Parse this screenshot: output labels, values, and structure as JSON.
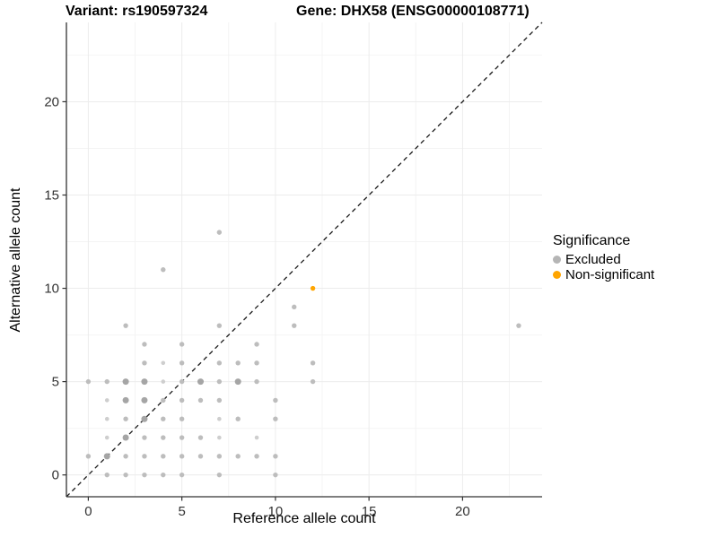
{
  "titles": {
    "variant": "Variant: rs190597324",
    "gene": "Gene: DHX58 (ENSG00000108771)"
  },
  "legend": {
    "title": "Significance",
    "items": [
      {
        "label": "Excluded",
        "color": "#b5b5b5"
      },
      {
        "label": "Non-significant",
        "color": "#FFA500"
      }
    ]
  },
  "chart_data": {
    "type": "scatter",
    "title": "",
    "xlabel": "Reference allele count",
    "ylabel": "Alternative allele count",
    "xlim": [
      -1.17,
      24.25
    ],
    "ylim": [
      -1.17,
      24.25
    ],
    "x_ticks": [
      0,
      5,
      10,
      15,
      20
    ],
    "y_ticks": [
      0,
      5,
      10,
      15,
      20
    ],
    "grid_major": [
      0,
      5,
      10,
      15,
      20
    ],
    "grid_minor": [
      2.5,
      7.5,
      12.5,
      17.5,
      22.5
    ],
    "grid_on": true,
    "legend_position": "right",
    "identity_line": {
      "style": "dashed",
      "equation": "y = x",
      "color": "#1a1a1a"
    },
    "series": [
      {
        "name": "Excluded",
        "color": "#bdbdbd",
        "color_light": "#cecece",
        "color_dark": "#a5a5a5",
        "points": [
          [
            1,
            0,
            1
          ],
          [
            2,
            0,
            1
          ],
          [
            3,
            0,
            1
          ],
          [
            4,
            0,
            1
          ],
          [
            5,
            0,
            1
          ],
          [
            7,
            0,
            1
          ],
          [
            10,
            0,
            1
          ],
          [
            0,
            1,
            1
          ],
          [
            1,
            1,
            2
          ],
          [
            2,
            1,
            1
          ],
          [
            3,
            1,
            1
          ],
          [
            4,
            1,
            1
          ],
          [
            5,
            1,
            1
          ],
          [
            6,
            1,
            1
          ],
          [
            7,
            1,
            1
          ],
          [
            8,
            1,
            1
          ],
          [
            9,
            1,
            1
          ],
          [
            10,
            1,
            1
          ],
          [
            1,
            2,
            0
          ],
          [
            2,
            2,
            2
          ],
          [
            3,
            2,
            1
          ],
          [
            4,
            2,
            1
          ],
          [
            5,
            2,
            1
          ],
          [
            6,
            2,
            1
          ],
          [
            7,
            2,
            0
          ],
          [
            9,
            2,
            0
          ],
          [
            1,
            3,
            0
          ],
          [
            2,
            3,
            1
          ],
          [
            3,
            3,
            2
          ],
          [
            4,
            3,
            1
          ],
          [
            5,
            3,
            1
          ],
          [
            7,
            3,
            0
          ],
          [
            8,
            3,
            1
          ],
          [
            10,
            3,
            1
          ],
          [
            1,
            4,
            0
          ],
          [
            2,
            4,
            2
          ],
          [
            3,
            4,
            2
          ],
          [
            4,
            4,
            1
          ],
          [
            5,
            4,
            1
          ],
          [
            6,
            4,
            1
          ],
          [
            7,
            4,
            1
          ],
          [
            10,
            4,
            1
          ],
          [
            0,
            5,
            1
          ],
          [
            1,
            5,
            1
          ],
          [
            2,
            5,
            2
          ],
          [
            3,
            5,
            2
          ],
          [
            4,
            5,
            0
          ],
          [
            5,
            5,
            1
          ],
          [
            6,
            5,
            2
          ],
          [
            7,
            5,
            1
          ],
          [
            8,
            5,
            2
          ],
          [
            9,
            5,
            1
          ],
          [
            12,
            5,
            1
          ],
          [
            3,
            6,
            1
          ],
          [
            4,
            6,
            0
          ],
          [
            5,
            6,
            1
          ],
          [
            7,
            6,
            1
          ],
          [
            8,
            6,
            1
          ],
          [
            9,
            6,
            1
          ],
          [
            12,
            6,
            1
          ],
          [
            3,
            7,
            1
          ],
          [
            5,
            7,
            1
          ],
          [
            9,
            7,
            1
          ],
          [
            2,
            8,
            1
          ],
          [
            7,
            8,
            1
          ],
          [
            11,
            8,
            1
          ],
          [
            23,
            8,
            1
          ],
          [
            11,
            9,
            1
          ],
          [
            4,
            11,
            1
          ],
          [
            7,
            13,
            1
          ]
        ]
      },
      {
        "name": "Non-significant",
        "color": "#FFA500",
        "points": [
          [
            12,
            10,
            1
          ]
        ]
      }
    ],
    "style": {
      "axis_line_color": "#333333",
      "tick_label_color": "#333333",
      "grid_major_color": "#ececec",
      "grid_minor_color": "#f4f4f4",
      "background": "#ffffff"
    }
  }
}
